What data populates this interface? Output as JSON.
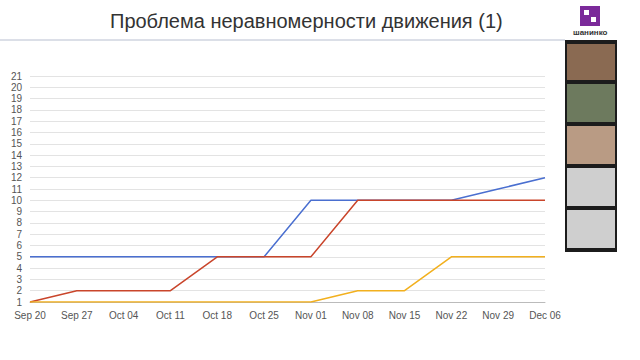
{
  "chart_data": {
    "type": "line",
    "title": "Проблема неравномерности движения (1)",
    "annotations": [
      "шанинко"
    ],
    "categories": [
      "Sep 20",
      "Sep 27",
      "Oct 04",
      "Oct 11",
      "Oct 18",
      "Oct 25",
      "Nov 01",
      "Nov 08",
      "Nov 15",
      "Nov 22",
      "Nov 29",
      "Dec 06"
    ],
    "series": [
      {
        "color": "#4a6fd0",
        "values": [
          5,
          5,
          5,
          5,
          5,
          5,
          10,
          10,
          10,
          10,
          11,
          12
        ]
      },
      {
        "color": "#c9452b",
        "values": [
          1,
          2,
          2,
          2,
          5,
          5,
          5,
          10,
          10,
          10,
          10,
          10
        ]
      },
      {
        "color": "#f2b01e",
        "values": [
          1,
          1,
          1,
          1,
          1,
          1,
          1,
          2,
          2,
          5,
          5,
          5
        ]
      }
    ],
    "ylim": [
      1,
      21
    ],
    "yticks": [
      1,
      2,
      3,
      4,
      5,
      6,
      7,
      8,
      9,
      10,
      11,
      12,
      13,
      14,
      15,
      16,
      17,
      18,
      19,
      20,
      21
    ],
    "grid": true
  }
}
